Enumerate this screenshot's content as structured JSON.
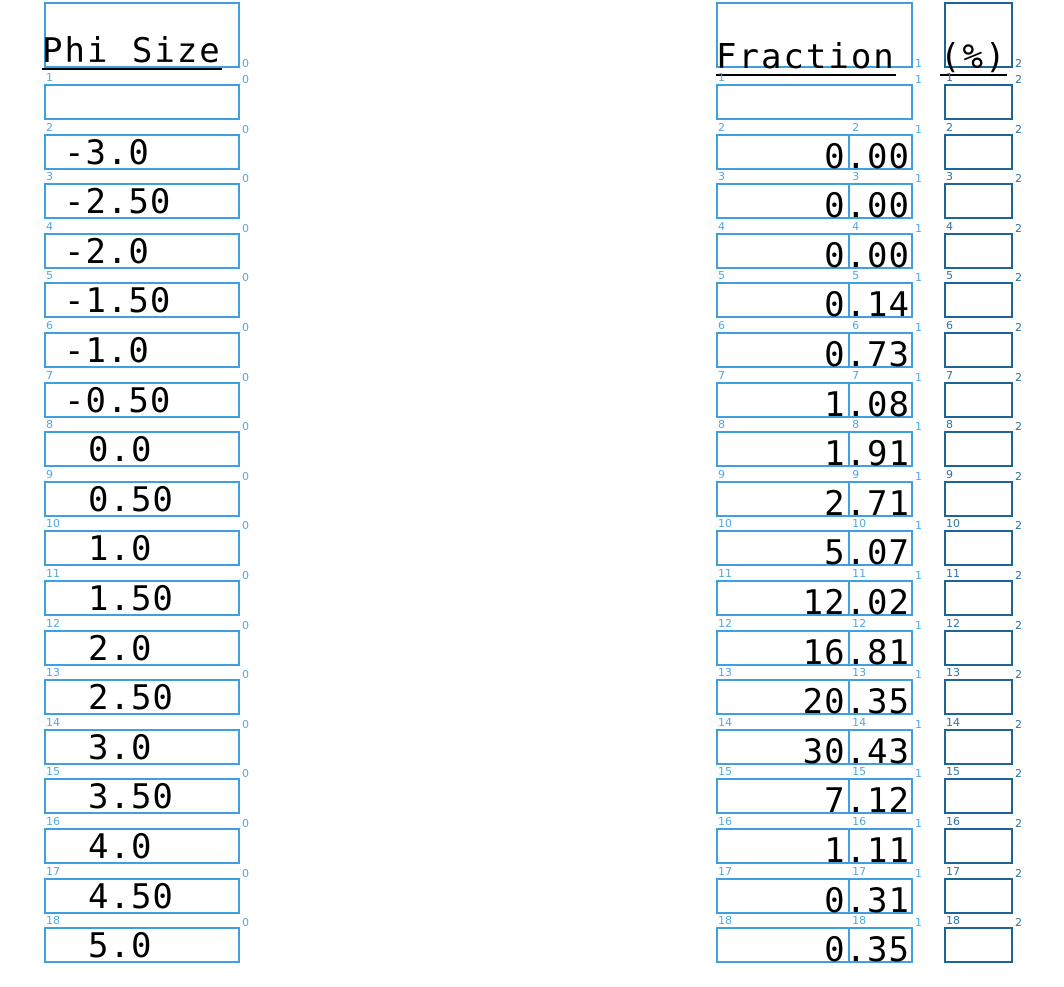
{
  "page": {
    "accent": "#3ea0e0",
    "accent_dark": "#1f6594"
  },
  "columns": [
    {
      "index": "0",
      "header": "Phi Size"
    },
    {
      "index": "1",
      "header": "Fraction"
    },
    {
      "index": "2",
      "header": "(%)"
    }
  ],
  "row_labels": [
    "1",
    "2",
    "3",
    "4",
    "5",
    "6",
    "7",
    "8",
    "9",
    "10",
    "11",
    "12",
    "13",
    "14",
    "15",
    "16",
    "17",
    "18"
  ],
  "rows": [
    {
      "phi": "",
      "fraction": ""
    },
    {
      "phi": "-3.0",
      "fraction": "0.00"
    },
    {
      "phi": "-2.50",
      "fraction": "0.00"
    },
    {
      "phi": "-2.0",
      "fraction": "0.00"
    },
    {
      "phi": "-1.50",
      "fraction": "0.14"
    },
    {
      "phi": "-1.0",
      "fraction": "0.73"
    },
    {
      "phi": "-0.50",
      "fraction": "1.08"
    },
    {
      "phi": "0.0",
      "fraction": "1.91"
    },
    {
      "phi": "0.50",
      "fraction": "2.71"
    },
    {
      "phi": "1.0",
      "fraction": "5.07"
    },
    {
      "phi": "1.50",
      "fraction": "12.02"
    },
    {
      "phi": "2.0",
      "fraction": "16.81"
    },
    {
      "phi": "2.50",
      "fraction": "20.35"
    },
    {
      "phi": "3.0",
      "fraction": "30.43"
    },
    {
      "phi": "3.50",
      "fraction": "7.12"
    },
    {
      "phi": "4.0",
      "fraction": "1.11"
    },
    {
      "phi": "4.50",
      "fraction": "0.31"
    },
    {
      "phi": "5.0",
      "fraction": "0.35"
    }
  ]
}
